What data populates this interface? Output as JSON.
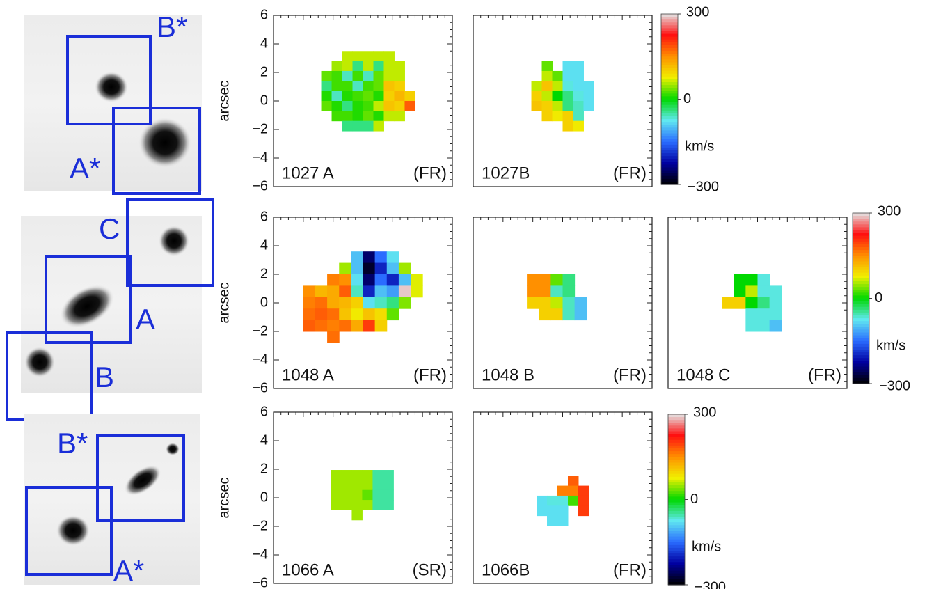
{
  "thumbnails": [
    {
      "labels": [
        "B*",
        "A*"
      ]
    },
    {
      "labels": [
        "C",
        "A",
        "B"
      ]
    },
    {
      "labels": [
        "B*",
        "A*"
      ]
    }
  ],
  "colorscale": [
    "#000000",
    "#0000a0",
    "#2a6cff",
    "#60e8f0",
    "#00d800",
    "#f0f000",
    "#ff9000",
    "#ff1010",
    "#e4e4e4"
  ],
  "chart_data": [
    {
      "type": "heatmap",
      "title": "1027 A",
      "annotation": "(FR)",
      "ylabel": "arcsec",
      "xlim": [
        -6,
        6
      ],
      "ylim": [
        -6,
        6
      ],
      "yticks": [
        {
          "value": -6,
          "label": "−6"
        },
        {
          "value": -4,
          "label": "−4"
        },
        {
          "value": -2,
          "label": "−2"
        },
        0,
        2,
        4,
        6
      ],
      "clim": [
        -300,
        300
      ],
      "x": [
        -2.45,
        -1.75,
        -1.05,
        -0.35,
        0.35,
        1.05,
        1.75,
        2.45,
        3.15
      ],
      "y": [
        3.15,
        2.45,
        1.75,
        1.05,
        0.35,
        -0.35,
        -1.05,
        -1.75
      ],
      "z": [
        [
          null,
          null,
          60,
          60,
          60,
          60,
          60,
          null,
          null
        ],
        [
          null,
          50,
          60,
          -40,
          60,
          -40,
          60,
          60,
          null
        ],
        [
          30,
          20,
          -60,
          20,
          -60,
          30,
          60,
          60,
          null
        ],
        [
          -40,
          20,
          20,
          -60,
          20,
          30,
          110,
          100,
          null
        ],
        [
          10,
          -60,
          10,
          20,
          30,
          10,
          100,
          120,
          100
        ],
        [
          30,
          10,
          -40,
          10,
          20,
          60,
          110,
          100,
          180
        ],
        [
          null,
          20,
          20,
          10,
          30,
          10,
          60,
          60,
          null
        ],
        [
          null,
          null,
          -40,
          -40,
          -40,
          60,
          null,
          null,
          null
        ]
      ]
    },
    {
      "type": "heatmap",
      "title": "1027B",
      "annotation": "(FR)",
      "xlim": [
        -6,
        6
      ],
      "ylim": [
        -6,
        6
      ],
      "clim": [
        -300,
        300
      ],
      "x": [
        -1.75,
        -1.05,
        -0.35,
        0.35,
        1.05,
        1.75
      ],
      "y": [
        2.45,
        1.75,
        1.05,
        0.35,
        -0.35,
        -1.05,
        -1.75
      ],
      "z": [
        [
          null,
          30,
          null,
          -80,
          -80,
          null
        ],
        [
          null,
          60,
          30,
          -80,
          -80,
          null
        ],
        [
          60,
          110,
          60,
          -70,
          -80,
          -80
        ],
        [
          100,
          60,
          0,
          -40,
          -70,
          -80
        ],
        [
          110,
          100,
          60,
          -40,
          -60,
          -80
        ],
        [
          null,
          100,
          80,
          100,
          -60,
          null
        ],
        [
          null,
          null,
          null,
          100,
          80,
          null
        ]
      ],
      "colorbar": {
        "ticks": [
          300,
          0,
          {
            "value": -300,
            "label": "−300"
          }
        ],
        "label": "km/s"
      }
    },
    {
      "type": "heatmap",
      "title": "1048 A",
      "annotation": "(FR)",
      "ylabel": "arcsec",
      "xlim": [
        -6,
        6
      ],
      "ylim": [
        -6,
        6
      ],
      "yticks": [
        {
          "value": -6,
          "label": "−6"
        },
        {
          "value": -4,
          "label": "−4"
        },
        {
          "value": -2,
          "label": "−2"
        },
        0,
        2,
        4,
        6
      ],
      "clim": [
        -300,
        300
      ],
      "x": [
        -3.6,
        -2.8,
        -2.0,
        -1.2,
        -0.4,
        0.4,
        1.2,
        2.0,
        2.8,
        3.6
      ],
      "y": [
        3.2,
        2.4,
        1.6,
        0.8,
        0,
        -0.8,
        -1.6,
        -2.4
      ],
      "z": [
        [
          null,
          null,
          null,
          null,
          -100,
          -250,
          -150,
          -80,
          null,
          null
        ],
        [
          null,
          null,
          null,
          50,
          -100,
          -280,
          -200,
          -100,
          50,
          null
        ],
        [
          null,
          null,
          160,
          150,
          -80,
          -250,
          -150,
          -200,
          -100,
          70
        ],
        [
          150,
          120,
          130,
          180,
          -60,
          -200,
          -100,
          -120,
          290,
          70
        ],
        [
          160,
          170,
          130,
          120,
          100,
          -80,
          -60,
          -40,
          40,
          null
        ],
        [
          170,
          180,
          170,
          110,
          80,
          110,
          90,
          30,
          null,
          null
        ],
        [
          180,
          170,
          160,
          170,
          130,
          200,
          100,
          null,
          null,
          null
        ],
        [
          null,
          null,
          170,
          null,
          null,
          null,
          null,
          null,
          null,
          null
        ]
      ]
    },
    {
      "type": "heatmap",
      "title": "1048 B",
      "annotation": "(FR)",
      "xlim": [
        -6,
        6
      ],
      "ylim": [
        -6,
        6
      ],
      "clim": [
        -300,
        300
      ],
      "x": [
        -2.0,
        -1.2,
        -0.4,
        0.4,
        1.2
      ],
      "y": [
        1.6,
        0.8,
        0,
        -0.8
      ],
      "z": [
        [
          150,
          150,
          30,
          -40,
          null
        ],
        [
          150,
          150,
          -60,
          -40,
          null
        ],
        [
          100,
          100,
          60,
          -60,
          -100
        ],
        [
          null,
          100,
          100,
          -60,
          -100
        ]
      ]
    },
    {
      "type": "heatmap",
      "title": "1048 C",
      "annotation": "(FR)",
      "xlim": [
        -6,
        6
      ],
      "ylim": [
        -6,
        6
      ],
      "clim": [
        -300,
        300
      ],
      "x": [
        -2.0,
        -1.2,
        -0.4,
        0.4,
        1.2
      ],
      "y": [
        1.6,
        0.8,
        0,
        -0.8,
        -1.6
      ],
      "z": [
        [
          null,
          0,
          0,
          -70,
          null
        ],
        [
          null,
          0,
          60,
          -70,
          -70
        ],
        [
          100,
          100,
          0,
          -40,
          -70
        ],
        [
          null,
          null,
          -70,
          -70,
          -70
        ],
        [
          null,
          null,
          -70,
          -70,
          -100
        ]
      ],
      "colorbar": {
        "ticks": [
          300,
          0,
          {
            "value": -300,
            "label": "−300"
          }
        ],
        "label": "km/s"
      }
    },
    {
      "type": "heatmap",
      "title": "1066 A",
      "annotation": "(SR)",
      "ylabel": "arcsec",
      "xlim": [
        -6,
        6
      ],
      "ylim": [
        -6,
        6
      ],
      "yticks": [
        {
          "value": -6,
          "label": "−6"
        },
        {
          "value": -4,
          "label": "−4"
        },
        {
          "value": -2,
          "label": "−2"
        },
        0,
        2,
        4,
        6
      ],
      "clim": [
        -300,
        300
      ],
      "x": [
        -1.8,
        -1.1,
        -0.4,
        0.3,
        1.0,
        1.7
      ],
      "y": [
        1.6,
        0.9,
        0.2,
        -0.5,
        -1.2
      ],
      "z": [
        [
          50,
          50,
          50,
          50,
          -50,
          -50
        ],
        [
          50,
          50,
          50,
          50,
          -50,
          -50
        ],
        [
          50,
          50,
          50,
          30,
          -50,
          -50
        ],
        [
          50,
          50,
          50,
          50,
          -50,
          -50
        ],
        [
          null,
          null,
          50,
          null,
          null,
          null
        ]
      ]
    },
    {
      "type": "heatmap",
      "title": "1066B",
      "annotation": "(FR)",
      "xlim": [
        -6,
        6
      ],
      "ylim": [
        -6,
        6
      ],
      "clim": [
        -300,
        300
      ],
      "x": [
        -1.4,
        -0.7,
        0,
        0.7,
        1.4
      ],
      "y": [
        1.2,
        0.5,
        -0.2,
        -0.9,
        -1.6
      ],
      "z": [
        [
          null,
          null,
          null,
          180,
          null
        ],
        [
          null,
          null,
          160,
          160,
          200
        ],
        [
          -80,
          -70,
          -70,
          20,
          200
        ],
        [
          -80,
          -80,
          -80,
          null,
          200
        ],
        [
          null,
          -80,
          -80,
          null,
          null
        ]
      ],
      "colorbar": {
        "ticks": [
          300,
          0,
          {
            "value": -300,
            "label": "−300"
          }
        ],
        "label": "km/s"
      }
    }
  ]
}
